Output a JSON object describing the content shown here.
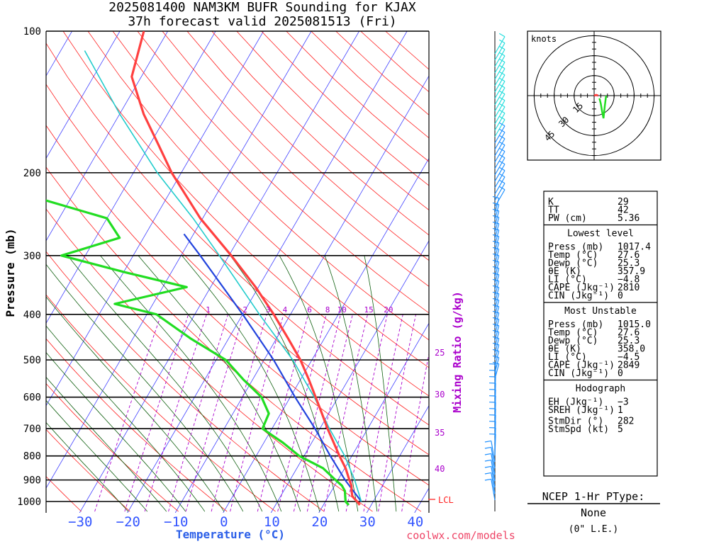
{
  "title": {
    "line1": "2025081400 NAM3KM BUFR Sounding for KJAX",
    "line2": "37h forecast valid 2025081513 (Fri)"
  },
  "colors": {
    "temperature": "#ff4040",
    "dewpoint": "#22dd22",
    "virtual": "#22cccc",
    "parcel": "#2244dd",
    "isotherm": "#4040ff",
    "dry_adiabat": "#ff2020",
    "moist_adiabat": "#106010",
    "mixing_ratio": "#aa00cc",
    "wind": "#1e90ff",
    "wind_upper": "#22dddd"
  },
  "chart_data": {
    "type": "skew-t",
    "xlabel": "Temperature (°C)",
    "ylabel": "Pressure (mb)",
    "x_ticks": [
      "−30",
      "−20",
      "−10",
      "0",
      "10",
      "20",
      "30",
      "40"
    ],
    "x_tick_values": [
      -30,
      -20,
      -10,
      0,
      10,
      20,
      30,
      40
    ],
    "pressure_levels": [
      100,
      200,
      300,
      400,
      500,
      600,
      700,
      800,
      900,
      1000
    ],
    "pressure_range": [
      1050,
      100
    ],
    "mixing_ratio_label": "Mixing Ratio (g/kg)",
    "mixing_ratio_lines": [
      "1",
      "2",
      "3",
      "4",
      "6",
      "8",
      "10",
      "15",
      "20"
    ],
    "mixing_ratio_values": [
      1,
      2,
      3,
      4,
      6,
      8,
      10,
      15,
      20
    ],
    "theta_e_labels": [
      "25",
      "30",
      "35",
      "40"
    ],
    "lcl_label": "LCL",
    "temperature_profile": [
      [
        1017.4,
        27.6
      ],
      [
        1000,
        26.6
      ],
      [
        975,
        25.0
      ],
      [
        950,
        24.2
      ],
      [
        925,
        23.5
      ],
      [
        900,
        22.4
      ],
      [
        850,
        20.2
      ],
      [
        800,
        17.4
      ],
      [
        750,
        14.6
      ],
      [
        700,
        11.6
      ],
      [
        650,
        8.6
      ],
      [
        600,
        5.3
      ],
      [
        550,
        1.7
      ],
      [
        500,
        -2.4
      ],
      [
        450,
        -7.6
      ],
      [
        400,
        -13.5
      ],
      [
        350,
        -20.6
      ],
      [
        300,
        -29.5
      ],
      [
        250,
        -40.5
      ],
      [
        200,
        -52.0
      ],
      [
        175,
        -58.0
      ],
      [
        150,
        -65.0
      ],
      [
        125,
        -72.0
      ],
      [
        100,
        -75.0
      ]
    ],
    "dewpoint_profile": [
      [
        1017.4,
        25.3
      ],
      [
        1000,
        24.2
      ],
      [
        975,
        23.5
      ],
      [
        950,
        22.8
      ],
      [
        925,
        21.5
      ],
      [
        900,
        19.5
      ],
      [
        850,
        15.5
      ],
      [
        800,
        9.0
      ],
      [
        750,
        4.0
      ],
      [
        700,
        -2.0
      ],
      [
        650,
        -2.5
      ],
      [
        600,
        -6.0
      ],
      [
        550,
        -12.0
      ],
      [
        500,
        -18.0
      ],
      [
        450,
        -28.0
      ],
      [
        400,
        -38.0
      ],
      [
        380,
        -48.0
      ],
      [
        350,
        -35.0
      ],
      [
        325,
        -50.0
      ],
      [
        300,
        -65.0
      ],
      [
        275,
        -55.0
      ],
      [
        250,
        -60.0
      ],
      [
        225,
        -78.0
      ],
      [
        200,
        -83.0
      ],
      [
        175,
        -87.0
      ],
      [
        150,
        -92.0
      ],
      [
        125,
        -95.0
      ],
      [
        110,
        -94.0
      ]
    ],
    "virtual_profile": [
      [
        1000,
        27.5
      ],
      [
        900,
        23.5
      ],
      [
        800,
        18.5
      ],
      [
        700,
        12.0
      ],
      [
        600,
        5.0
      ],
      [
        500,
        -4.0
      ],
      [
        400,
        -16.5
      ],
      [
        300,
        -32.0
      ],
      [
        250,
        -42.0
      ],
      [
        200,
        -55.0
      ],
      [
        150,
        -70.0
      ],
      [
        110,
        -85.0
      ]
    ],
    "parcel_profile": [
      [
        1000,
        27.5
      ],
      [
        900,
        21.5
      ],
      [
        800,
        15.5
      ],
      [
        700,
        9.0
      ],
      [
        600,
        1.0
      ],
      [
        500,
        -8.0
      ],
      [
        400,
        -20.0
      ],
      [
        300,
        -36.0
      ],
      [
        270,
        -42.0
      ]
    ],
    "hodograph": {
      "label": "knots",
      "ring_labels": [
        "15",
        "30",
        "45"
      ],
      "ring_values": [
        15,
        30,
        45
      ],
      "trace_temperature": [
        [
          0,
          0
        ],
        [
          1.5,
          0.5
        ],
        [
          3,
          0
        ]
      ],
      "trace_dewpoint": [
        [
          4,
          -2
        ],
        [
          5,
          -6
        ],
        [
          6,
          -12
        ],
        [
          7,
          -17
        ],
        [
          8,
          -8
        ],
        [
          9,
          0
        ]
      ]
    }
  },
  "indices": {
    "top": [
      {
        "label": "K",
        "value": "29"
      },
      {
        "label": "TT",
        "value": "42"
      },
      {
        "label": "PW (cm)",
        "value": "5.36"
      }
    ],
    "lowest": {
      "title": "Lowest level",
      "rows": [
        {
          "label": "Press (mb)",
          "value": "1017.4"
        },
        {
          "label": "Temp (°C)",
          "value": "27.6"
        },
        {
          "label": "Dewp (°C)",
          "value": "25.3"
        },
        {
          "label": "θE (K)",
          "value": "357.9"
        },
        {
          "label": "LI (°C)",
          "value": "−4.8"
        },
        {
          "label": "CAPE (Jkg⁻¹)",
          "value": "2810"
        },
        {
          "label": "CIN (Jkg⁻¹)",
          "value": "0"
        }
      ]
    },
    "unstable": {
      "title": "Most Unstable",
      "rows": [
        {
          "label": "Press (mb)",
          "value": "1015.0"
        },
        {
          "label": "Temp (°C)",
          "value": "27.6"
        },
        {
          "label": "Dewp (°C)",
          "value": "25.3"
        },
        {
          "label": "θE (K)",
          "value": "358.0"
        },
        {
          "label": "LI (°C)",
          "value": "−4.5"
        },
        {
          "label": "CAPE (Jkg⁻¹)",
          "value": "2849"
        },
        {
          "label": "CIN (Jkg⁻¹)",
          "value": "0"
        }
      ]
    },
    "hodo": {
      "title": "Hodograph",
      "rows": [
        {
          "label": "EH (Jkg⁻¹)",
          "value": "−3"
        },
        {
          "label": "SREH (Jkg⁻¹)",
          "value": "1"
        }
      ]
    },
    "storm": {
      "rows": [
        {
          "label": "StmDir (°)",
          "value": "282"
        },
        {
          "label": "StmSpd (kt)",
          "value": "5"
        }
      ]
    }
  },
  "ptype": {
    "title": "NCEP 1-Hr PType:",
    "value": "None",
    "amount": "(0\" L.E.)"
  },
  "credit": "coolwx.com/models"
}
